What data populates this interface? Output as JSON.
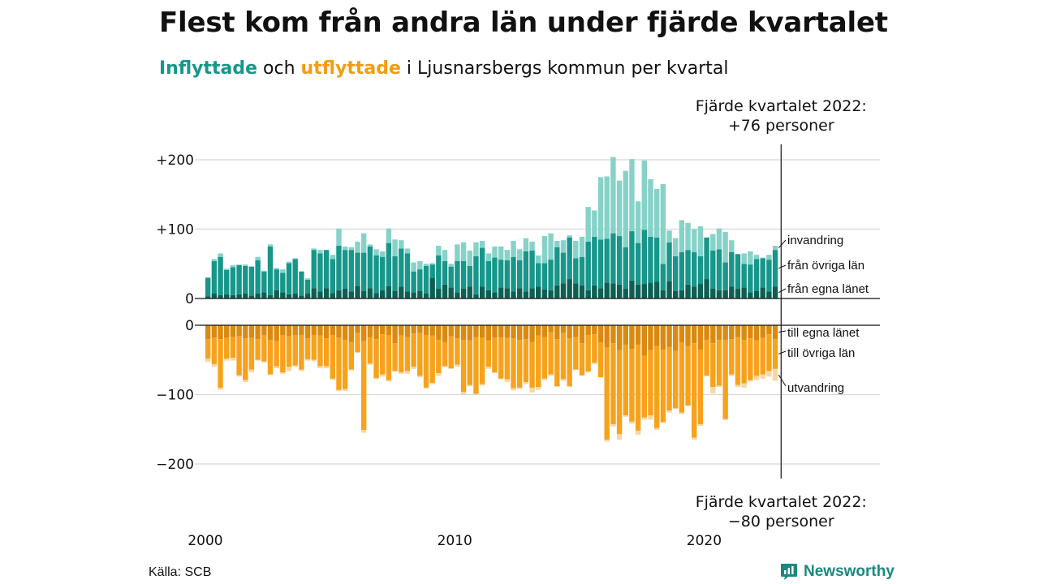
{
  "title": "Flest kom från andra län under fjärde kvartalet",
  "subtitle": {
    "in_word": "Inflyttade",
    "mid": " och ",
    "out_word": "utflyttade",
    "rest": " i Ljusnarsbergs kommun per kvartal"
  },
  "source": "Källa: SCB",
  "brand": "Newsworthy",
  "colors": {
    "in_same": "#0d5f53",
    "in_other": "#17968a",
    "in_abroad": "#86d2c8",
    "out_same": "#d98a0f",
    "out_other": "#f7a21b",
    "out_abroad": "#f8d7a2",
    "brand": "#19897f"
  },
  "chart_data": {
    "type": "bar",
    "subtype": "stacked-diverging",
    "x_start": "2000 Q1",
    "x_end": "2022 Q4",
    "x_ticks": [
      "2000",
      "2010",
      "2020"
    ],
    "y_ticks_top": [
      "+200",
      "+100",
      "0"
    ],
    "y_ticks_bottom": [
      "0",
      "−100",
      "−200"
    ],
    "ylim_top": [
      0,
      220
    ],
    "ylim_bottom": [
      -220,
      0
    ],
    "grid": true,
    "annotation_top": [
      "Fjärde kvartalet 2022:",
      "+76 personer"
    ],
    "annotation_bottom": [
      "Fjärde kvartalet 2022:",
      "−80 personer"
    ],
    "series_in": [
      {
        "name": "från egna länet",
        "values": [
          3,
          7,
          5,
          6,
          5,
          6,
          7,
          4,
          7,
          9,
          5,
          12,
          9,
          6,
          7,
          4,
          7,
          15,
          10,
          15,
          8,
          12,
          14,
          10,
          18,
          11,
          15,
          8,
          12,
          18,
          11,
          17,
          10,
          9,
          11,
          7,
          30,
          14,
          20,
          16,
          9,
          14,
          17,
          6,
          17,
          12,
          9,
          16,
          15,
          10,
          15,
          10,
          15,
          17,
          13,
          12,
          19,
          22,
          28,
          22,
          19,
          12,
          19,
          15,
          23,
          22,
          20,
          14,
          26,
          20,
          21,
          23,
          24,
          12,
          25,
          11,
          12,
          20,
          17,
          21,
          28,
          14,
          12,
          12,
          17,
          14,
          16,
          9,
          11,
          16,
          10,
          17
        ]
      },
      {
        "name": "från övriga län",
        "values": [
          27,
          47,
          55,
          35,
          40,
          42,
          40,
          42,
          48,
          30,
          70,
          30,
          28,
          45,
          50,
          35,
          20,
          55,
          55,
          55,
          49,
          64,
          56,
          60,
          48,
          55,
          60,
          54,
          48,
          62,
          50,
          55,
          55,
          30,
          31,
          40,
          19,
          48,
          34,
          30,
          45,
          40,
          30,
          55,
          56,
          42,
          50,
          40,
          40,
          50,
          40,
          58,
          54,
          34,
          38,
          44,
          55,
          44,
          60,
          36,
          41,
          70,
          70,
          70,
          63,
          72,
          70,
          60,
          71,
          60,
          78,
          66,
          64,
          38,
          56,
          50,
          55,
          50,
          50,
          40,
          60,
          55,
          59,
          40,
          50,
          50,
          34,
          40,
          46,
          42,
          46,
          53
        ]
      },
      {
        "name": "invandring",
        "values": [
          0,
          3,
          5,
          2,
          3,
          1,
          2,
          0,
          5,
          1,
          3,
          2,
          5,
          2,
          1,
          0,
          2,
          2,
          5,
          0,
          6,
          25,
          5,
          4,
          16,
          28,
          3,
          9,
          8,
          21,
          24,
          12,
          7,
          13,
          12,
          3,
          2,
          14,
          16,
          4,
          24,
          27,
          22,
          20,
          10,
          11,
          16,
          19,
          15,
          23,
          16,
          19,
          13,
          11,
          39,
          38,
          9,
          18,
          3,
          25,
          29,
          50,
          38,
          90,
          90,
          110,
          80,
          110,
          104,
          60,
          100,
          83,
          70,
          115,
          17,
          26,
          46,
          39,
          33,
          43,
          0,
          24,
          30,
          44,
          17,
          0,
          15,
          19,
          6,
          1,
          7,
          6
        ]
      }
    ],
    "series_out": [
      {
        "name": "till egna länet",
        "values": [
          20,
          18,
          20,
          18,
          17,
          16,
          19,
          18,
          20,
          14,
          21,
          23,
          14,
          16,
          14,
          14,
          19,
          14,
          15,
          19,
          14,
          18,
          21,
          24,
          11,
          23,
          17,
          20,
          13,
          14,
          26,
          15,
          17,
          12,
          11,
          14,
          15,
          21,
          24,
          16,
          19,
          21,
          22,
          17,
          18,
          22,
          18,
          17,
          18,
          19,
          21,
          20,
          24,
          15,
          17,
          10,
          20,
          11,
          19,
          17,
          26,
          14,
          13,
          25,
          32,
          26,
          36,
          28,
          34,
          28,
          44,
          36,
          30,
          35,
          31,
          37,
          25,
          30,
          26,
          35,
          21,
          26,
          21,
          21,
          20,
          17,
          21,
          19,
          22,
          18,
          13,
          20
        ]
      },
      {
        "name": "till övriga län",
        "values": [
          28,
          38,
          70,
          30,
          30,
          56,
          60,
          46,
          30,
          38,
          50,
          36,
          54,
          44,
          44,
          50,
          30,
          36,
          44,
          40,
          63,
          75,
          71,
          40,
          28,
          128,
          38,
          56,
          58,
          65,
          40,
          53,
          49,
          48,
          62,
          76,
          68,
          48,
          35,
          46,
          38,
          75,
          64,
          82,
          67,
          38,
          50,
          60,
          60,
          72,
          69,
          62,
          66,
          74,
          60,
          61,
          68,
          67,
          69,
          47,
          46,
          53,
          41,
          50,
          133,
          117,
          121,
          102,
          105,
          124,
          89,
          94,
          118,
          105,
          92,
          83,
          101,
          86,
          136,
          108,
          52,
          63,
          66,
          114,
          51,
          69,
          63,
          60,
          51,
          53,
          53,
          43
        ]
      },
      {
        "name": "utvandring",
        "values": [
          5,
          4,
          3,
          3,
          4,
          2,
          3,
          4,
          1,
          2,
          1,
          3,
          2,
          6,
          2,
          2,
          2,
          2,
          3,
          3,
          2,
          2,
          3,
          1,
          1,
          4,
          2,
          2,
          3,
          2,
          1,
          2,
          4,
          3,
          2,
          1,
          2,
          4,
          1,
          1,
          3,
          4,
          2,
          1,
          2,
          3,
          1,
          1,
          4,
          3,
          2,
          3,
          7,
          4,
          2,
          2,
          1,
          2,
          1,
          0,
          1,
          0,
          2,
          0,
          3,
          3,
          8,
          2,
          3,
          6,
          3,
          6,
          3,
          0,
          3,
          0,
          2,
          0,
          3,
          2,
          0,
          9,
          2,
          2,
          2,
          3,
          6,
          2,
          6,
          6,
          8,
          17
        ]
      }
    ],
    "last_in_total": 76,
    "last_out_total": 80
  }
}
